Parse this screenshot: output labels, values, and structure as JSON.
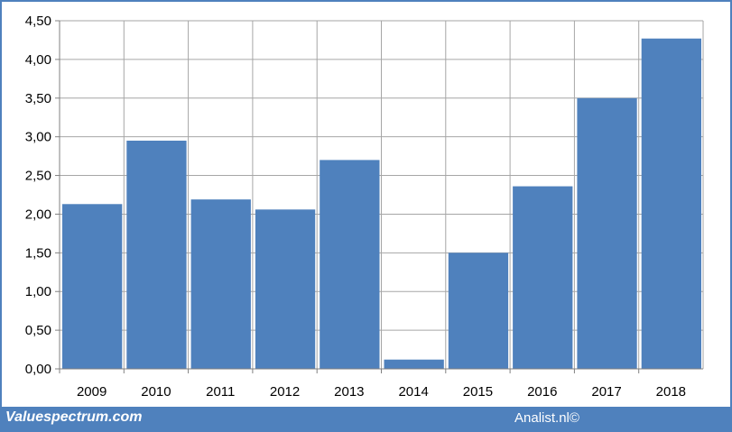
{
  "chart_data": {
    "type": "bar",
    "categories": [
      "2009",
      "2010",
      "2011",
      "2012",
      "2013",
      "2014",
      "2015",
      "2016",
      "2017",
      "2018"
    ],
    "values": [
      2.13,
      2.95,
      2.19,
      2.06,
      2.7,
      0.12,
      1.5,
      2.36,
      3.5,
      4.27
    ],
    "ylim": [
      0,
      4.5
    ],
    "yticks": [
      "0,00",
      "0,50",
      "1,00",
      "1,50",
      "2,00",
      "2,50",
      "3,00",
      "3,50",
      "4,00",
      "4,50"
    ],
    "grid": true,
    "bar_color": "#4f81bd",
    "grid_color": "#a6a6a6"
  },
  "footer": {
    "left_text": "Valuespectrum.com",
    "right_text": "Analist.nl©",
    "bar_color": "#4f81bd"
  }
}
